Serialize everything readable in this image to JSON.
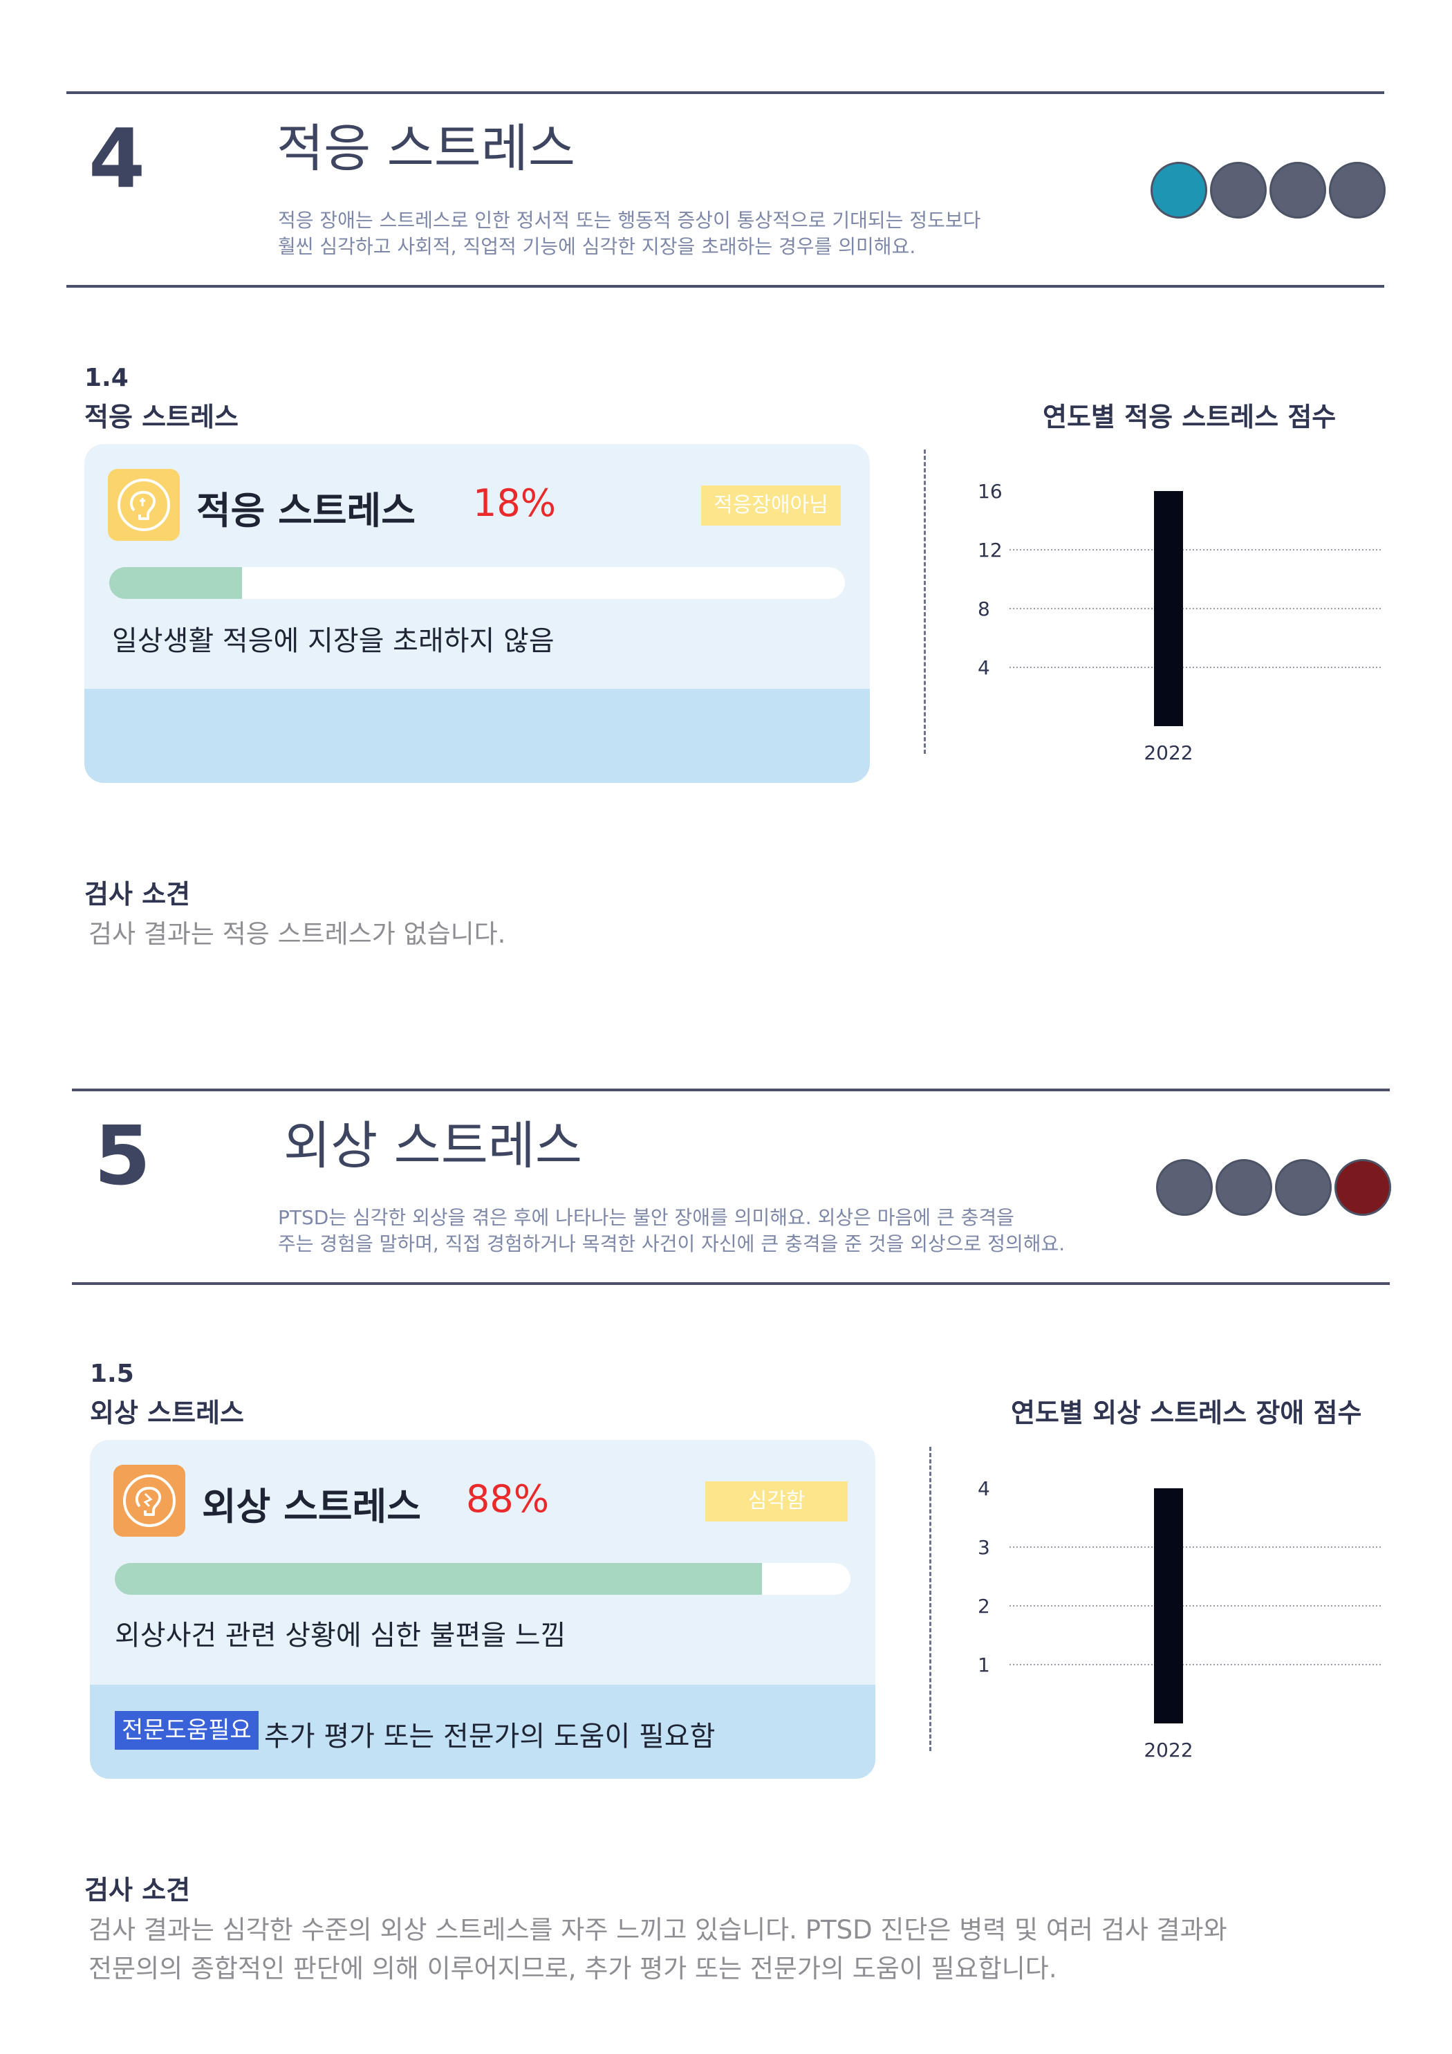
{
  "section4": {
    "number": "4",
    "title": "적응 스트레스",
    "desc1": "적응 장애는 스트레스로 인한 정서적 또는 행동적 증상이 통상적으로 기대되는 정도보다",
    "desc2": "훨씬 심각하고 사회적, 직업적 기능에 심각한 지장을 초래하는 경우를 의미해요.",
    "level_active": 1,
    "level_color": "#1e96b3",
    "sub_num": "1.4",
    "sub_label": "적응 스트레스",
    "card": {
      "title": "적응 스트레스",
      "percent_text": "18%",
      "percent": 18,
      "badge": "적응장애아님",
      "description": "일상생활 적응에 지장을 초래하지 않음",
      "icon": "brain-icon"
    },
    "chart_title": "연도별 적응 스트레스 점수",
    "finding_title": "검사 소견",
    "finding_text": "검사 결과는 적응 스트레스가 없습니다."
  },
  "section5": {
    "number": "5",
    "title": "외상 스트레스",
    "desc1": "PTSD는 심각한 외상을 겪은 후에 나타나는 불안 장애를 의미해요. 외상은 마음에 큰 충격을",
    "desc2": "주는 경험을 말하며, 직접 경험하거나 목격한 사건이 자신에 큰 충격을 준 것을 외상으로 정의해요.",
    "level_active": 4,
    "level_color": "#7a1a1e",
    "sub_num": "1.5",
    "sub_label": "외상 스트레스",
    "card": {
      "title": "외상 스트레스",
      "percent_text": "88%",
      "percent": 88,
      "badge": "심각함",
      "description": "외상사건 관련 상황에 심한 불편을 느낌",
      "help_tag": "전문도움필요",
      "help_text": "추가 평가 또는 전문가의 도움이 필요함",
      "icon": "brain-icon"
    },
    "chart_title": "연도별 외상 스트레스 장애 점수",
    "finding_title": "검사 소견",
    "finding_line1": "검사 결과는 심각한 수준의 외상 스트레스를 자주 느끼고 있습니다. PTSD 진단은 병력 및 여러 검사 결과와",
    "finding_line2": "전문의의 종합적인 판단에 의해 이루어지므로, 추가 평가 또는 전문가의 도움이 필요합니다."
  },
  "chart_data": [
    {
      "type": "bar",
      "categories": [
        "2022"
      ],
      "values": [
        16
      ],
      "yticks": [
        4,
        8,
        12,
        16
      ],
      "ylim": [
        0,
        16
      ],
      "title": "연도별 적응 스트레스 점수",
      "grid": true,
      "bar_color": "#050816"
    },
    {
      "type": "bar",
      "categories": [
        "2022"
      ],
      "values": [
        4
      ],
      "yticks": [
        1,
        2,
        3,
        4
      ],
      "ylim": [
        0,
        4
      ],
      "title": "연도별 외상 스트레스 장애 점수",
      "grid": true,
      "bar_color": "#050816"
    }
  ]
}
